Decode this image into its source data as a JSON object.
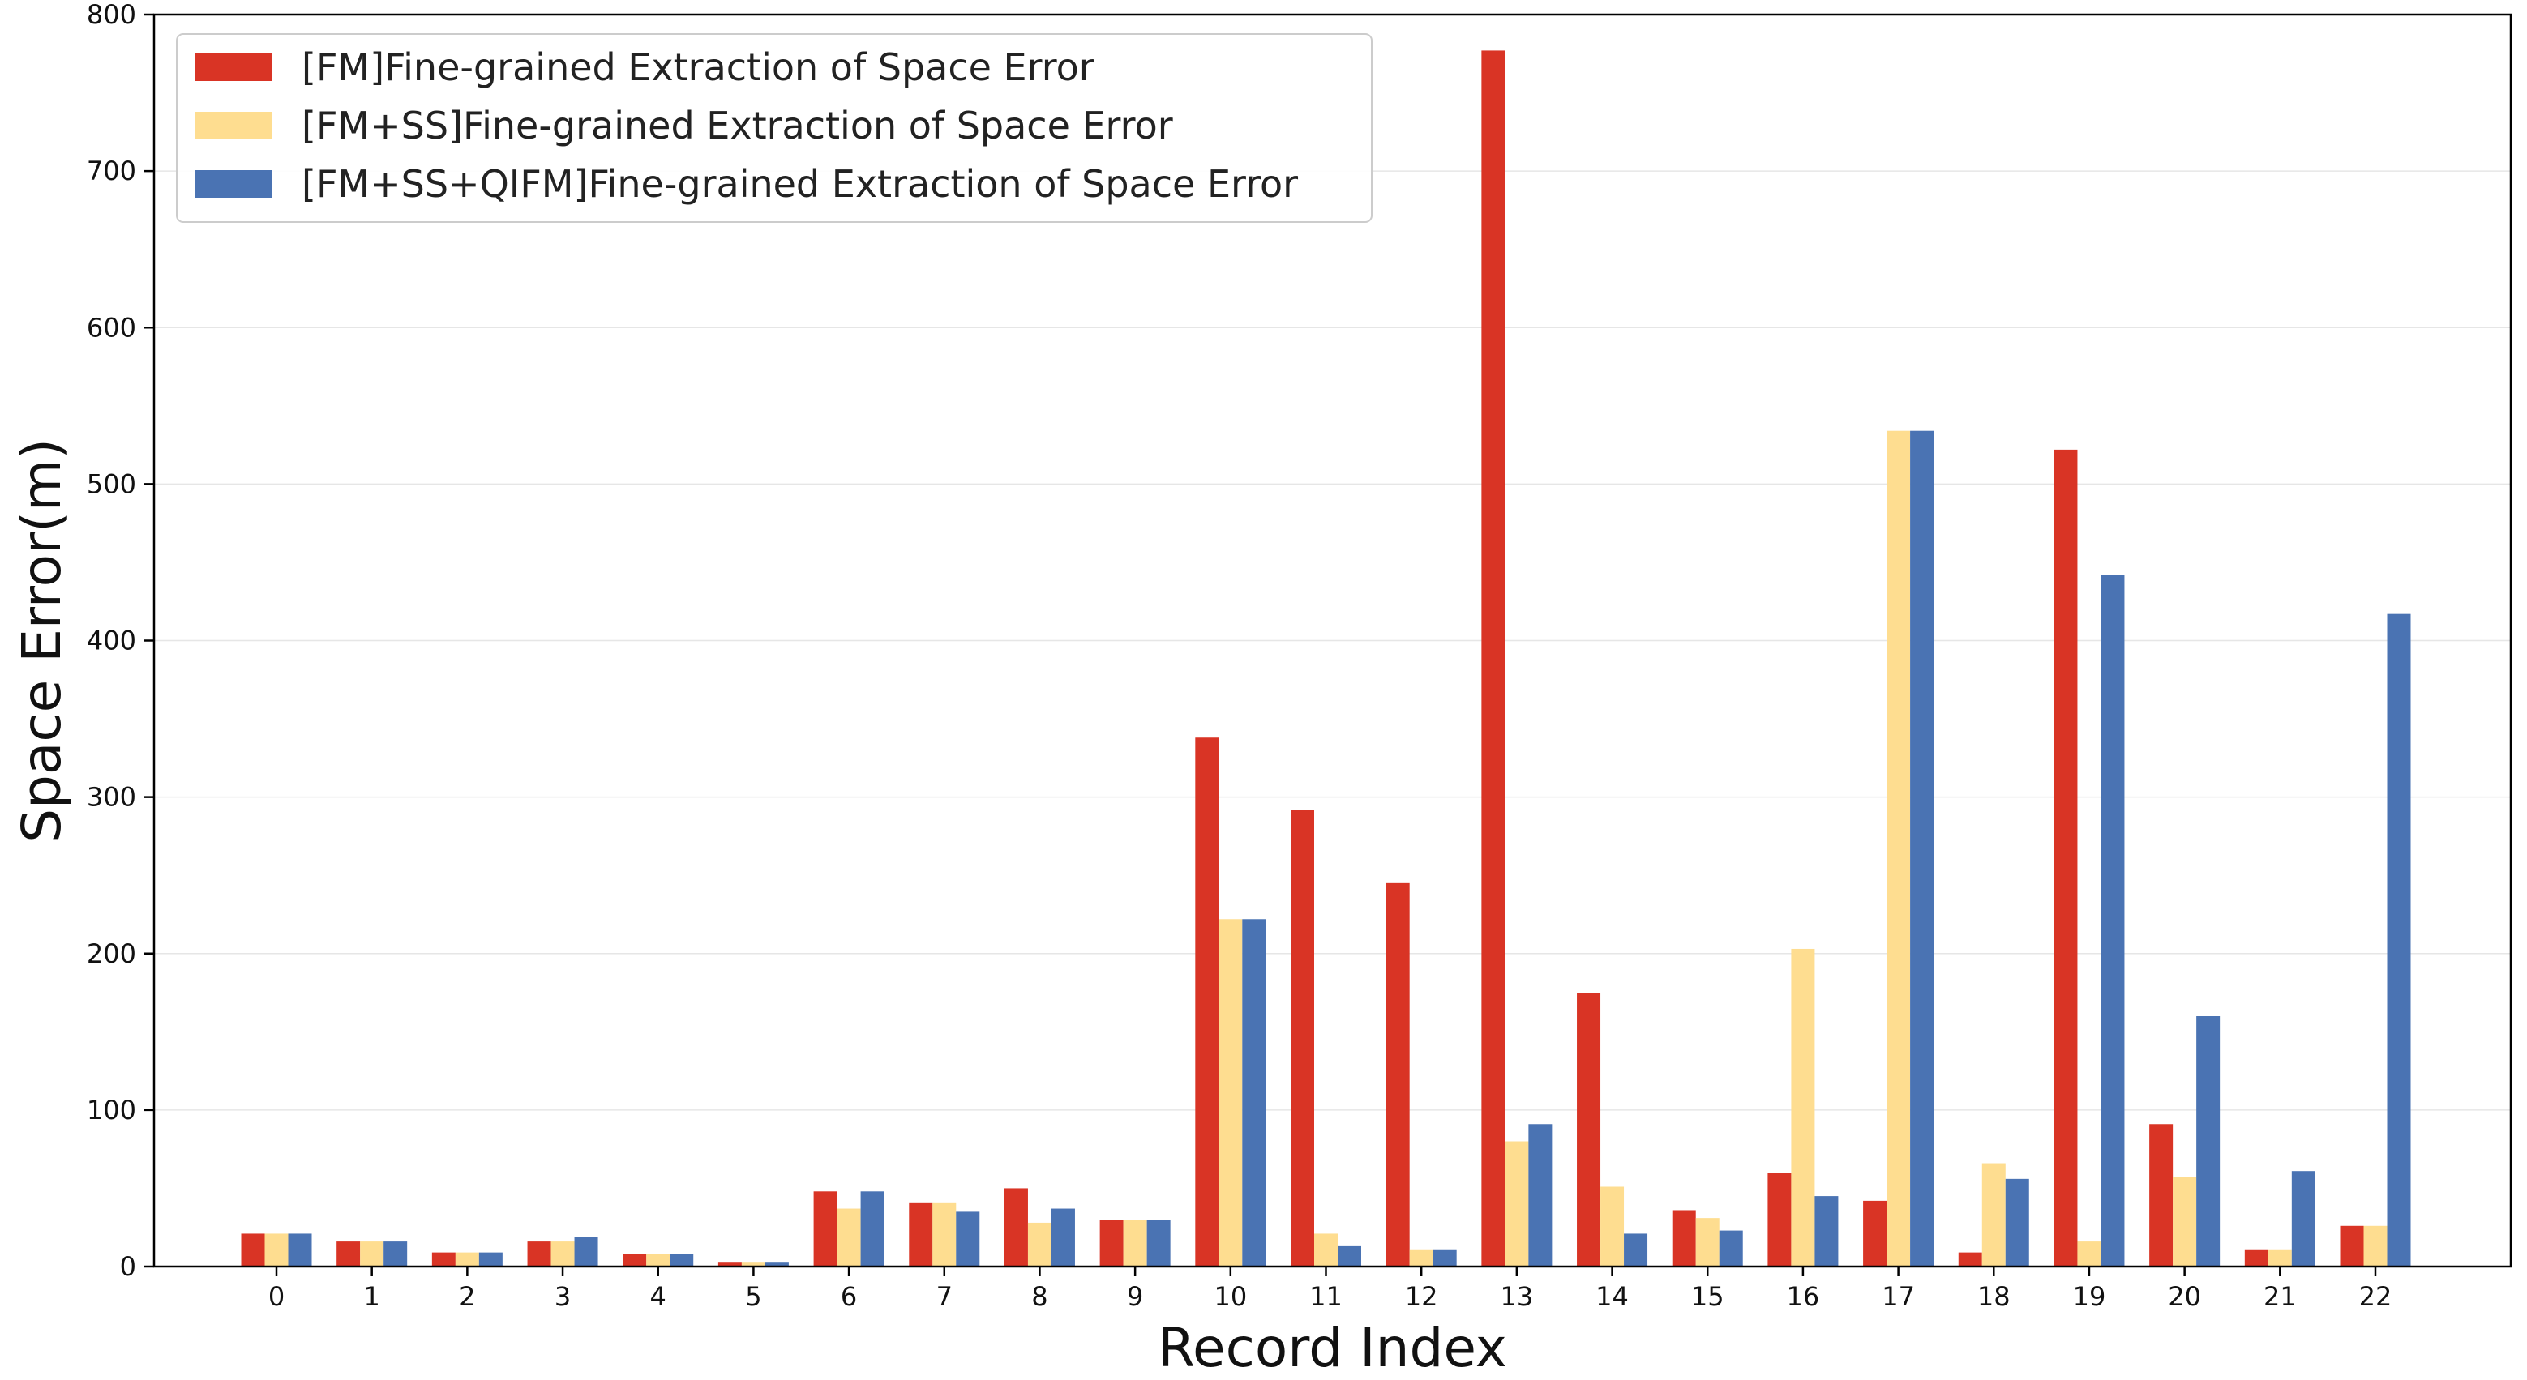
{
  "chart_data": {
    "type": "bar",
    "title": "",
    "xlabel": "Record Index",
    "ylabel": "Space Error(m)",
    "ylim": [
      0,
      800
    ],
    "yticks": [
      0,
      100,
      200,
      300,
      400,
      500,
      600,
      700,
      800
    ],
    "grid": "horizontal",
    "legend_position": "top-left",
    "categories": [
      "0",
      "1",
      "2",
      "3",
      "4",
      "5",
      "6",
      "7",
      "8",
      "9",
      "10",
      "11",
      "12",
      "13",
      "14",
      "15",
      "16",
      "17",
      "18",
      "19",
      "20",
      "21",
      "22"
    ],
    "series": [
      {
        "name": "[FM]Fine-grained Extraction of Space Error",
        "color": "#d93425",
        "values": [
          21,
          16,
          9,
          16,
          8,
          3,
          48,
          41,
          50,
          30,
          338,
          292,
          245,
          777,
          175,
          36,
          60,
          42,
          9,
          522,
          91,
          11,
          26
        ]
      },
      {
        "name": "[FM+SS]Fine-grained Extraction of Space Error",
        "color": "#fedd90",
        "values": [
          21,
          16,
          9,
          16,
          8,
          3,
          37,
          41,
          28,
          30,
          222,
          21,
          11,
          80,
          51,
          31,
          203,
          534,
          66,
          16,
          57,
          11,
          26
        ]
      },
      {
        "name": "[FM+SS+QIFM]Fine-grained Extraction of Space Error",
        "color": "#4a73b3",
        "values": [
          21,
          16,
          9,
          19,
          8,
          3,
          48,
          35,
          37,
          30,
          222,
          13,
          11,
          91,
          21,
          23,
          45,
          534,
          56,
          442,
          160,
          61,
          417
        ]
      }
    ]
  }
}
